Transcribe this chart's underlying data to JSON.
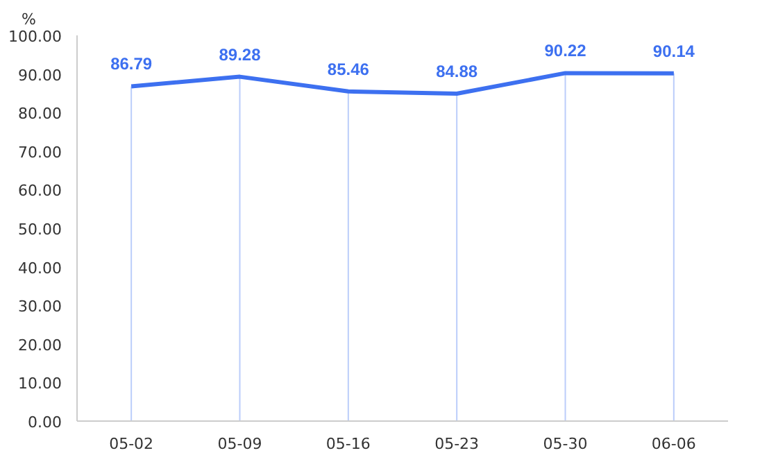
{
  "chart_data": {
    "type": "line",
    "ylabel": "%",
    "categories": [
      "05-02",
      "05-09",
      "05-16",
      "05-23",
      "05-30",
      "06-06"
    ],
    "series": [
      {
        "color": "#3d70f0",
        "values": [
          86.79,
          89.28,
          85.46,
          84.88,
          90.22,
          90.14
        ]
      }
    ],
    "ylim": [
      0,
      100
    ],
    "yticks": [
      {
        "value": 0,
        "label": "0.00"
      },
      {
        "value": 10,
        "label": "10.00"
      },
      {
        "value": 20,
        "label": "20.00"
      },
      {
        "value": 30,
        "label": "30.00"
      },
      {
        "value": 40,
        "label": "40.00"
      },
      {
        "value": 50,
        "label": "50.00"
      },
      {
        "value": 60,
        "label": "60.00"
      },
      {
        "value": 70,
        "label": "70.00"
      },
      {
        "value": 80,
        "label": "80.00"
      },
      {
        "value": 90,
        "label": "90.00"
      },
      {
        "value": 100,
        "label": "100.00"
      }
    ],
    "data_labels": true,
    "grid": "x"
  }
}
